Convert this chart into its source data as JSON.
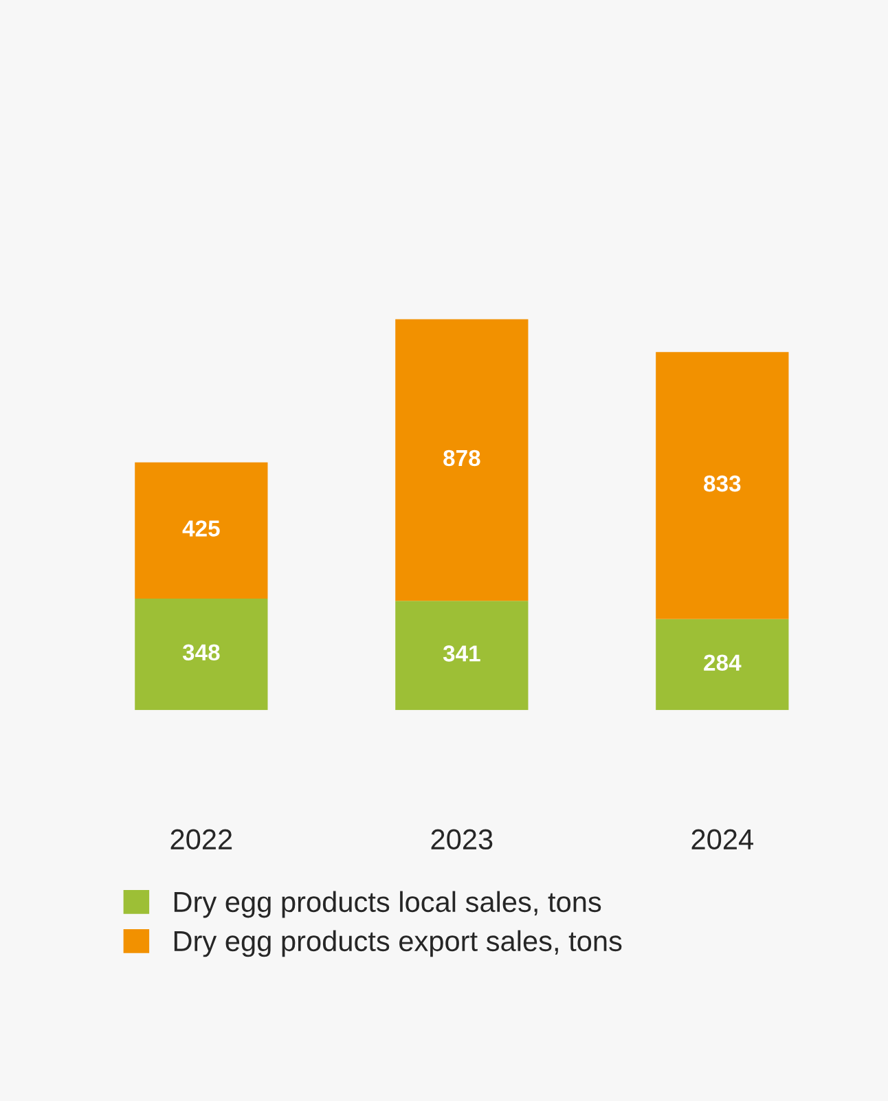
{
  "chart_data": {
    "type": "bar",
    "stacked": true,
    "categories": [
      "2022",
      "2023",
      "2024"
    ],
    "series": [
      {
        "name": "Dry egg products local sales, tons",
        "color": "#9dbf36",
        "values": [
          348,
          341,
          284
        ]
      },
      {
        "name": "Dry egg products export sales, tons",
        "color": "#f29100",
        "values": [
          425,
          878,
          833
        ]
      }
    ],
    "data_labels": true,
    "legend": "bottom",
    "grid": false
  }
}
